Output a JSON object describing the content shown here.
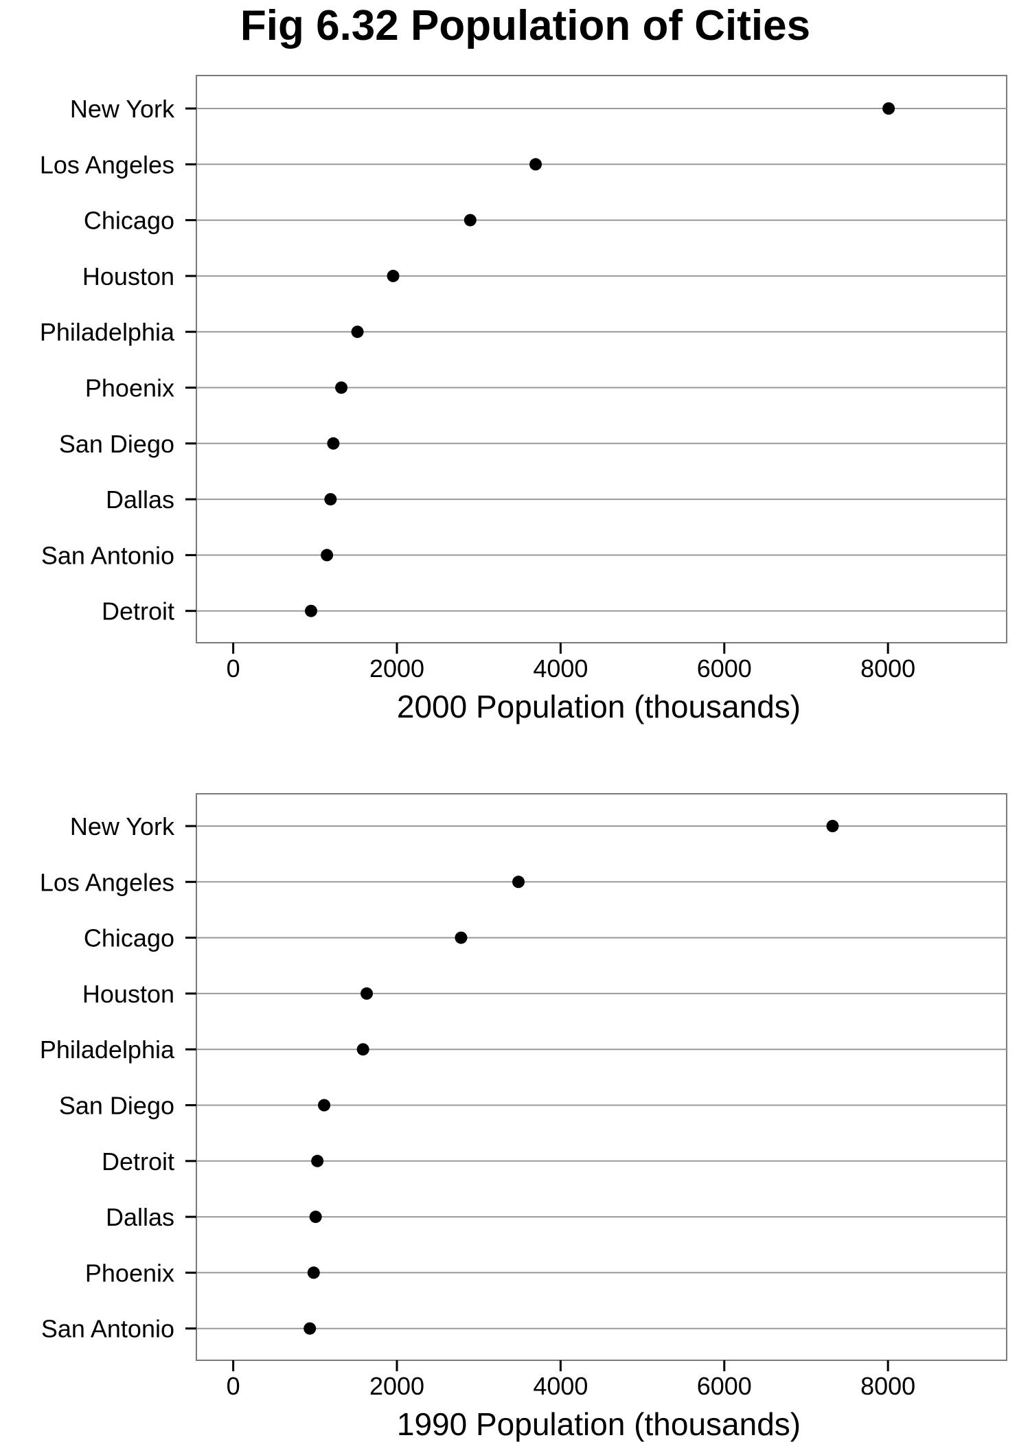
{
  "title": "Fig 6.32 Population of Cities",
  "chart_data": [
    {
      "type": "scatter",
      "xlabel": "2000 Population (thousands)",
      "ylabel": "",
      "xlim": [
        -450,
        9450
      ],
      "xticks": [
        0,
        2000,
        4000,
        6000,
        8000
      ],
      "grid": "horizontal",
      "categories": [
        "New York",
        "Los Angeles",
        "Chicago",
        "Houston",
        "Philadelphia",
        "Phoenix",
        "San Diego",
        "Dallas",
        "San Antonio",
        "Detroit"
      ],
      "values": [
        8008,
        3695,
        2896,
        1954,
        1518,
        1321,
        1223,
        1189,
        1145,
        951
      ]
    },
    {
      "type": "scatter",
      "xlabel": "1990 Population (thousands)",
      "ylabel": "",
      "xlim": [
        -450,
        9450
      ],
      "xticks": [
        0,
        2000,
        4000,
        6000,
        8000
      ],
      "grid": "horizontal",
      "categories": [
        "New York",
        "Los Angeles",
        "Chicago",
        "Houston",
        "Philadelphia",
        "San Diego",
        "Detroit",
        "Dallas",
        "Phoenix",
        "San Antonio"
      ],
      "values": [
        7323,
        3485,
        2784,
        1631,
        1586,
        1111,
        1028,
        1007,
        983,
        936
      ]
    }
  ]
}
